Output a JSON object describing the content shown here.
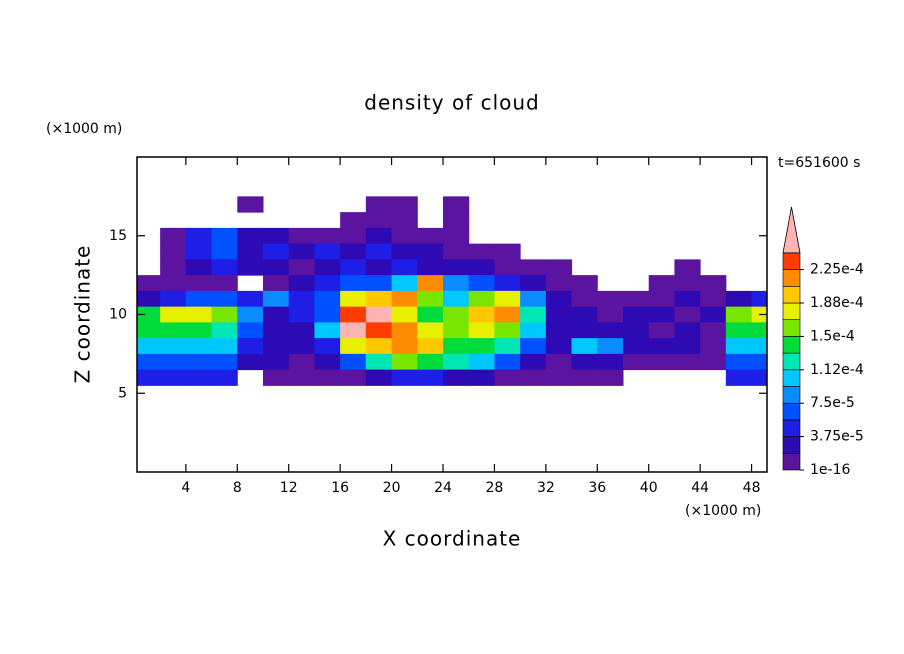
{
  "chart_data": {
    "type": "contour",
    "title": "density of cloud",
    "x_label": "X coordinate",
    "y_label": "Z coordinate",
    "x_unit": "(×1000 m)",
    "y_unit": "(×1000 m)",
    "time_label": "t=651600 s",
    "xlim": [
      0.2,
      49.2
    ],
    "ylim": [
      0,
      20
    ],
    "xticks": [
      4,
      8,
      12,
      16,
      20,
      24,
      28,
      32,
      36,
      40,
      44,
      48
    ],
    "yticks": [
      5,
      10,
      15
    ],
    "x": [
      1,
      3,
      5,
      7,
      9,
      11,
      13,
      15,
      17,
      19,
      21,
      23,
      25,
      27,
      29,
      31,
      33,
      35,
      37,
      39,
      41,
      43,
      45,
      47,
      49
    ],
    "z": [
      17,
      16,
      15,
      14,
      13,
      12,
      11,
      10,
      9,
      8,
      7,
      6
    ],
    "values": [
      [
        null,
        null,
        null,
        null,
        9e-06,
        null,
        null,
        null,
        null,
        9e-06,
        9e-06,
        null,
        9e-06,
        null,
        null,
        null,
        null,
        null,
        null,
        null,
        null,
        null,
        null,
        null,
        null
      ],
      [
        null,
        null,
        null,
        null,
        null,
        null,
        null,
        null,
        9e-06,
        9e-06,
        9e-06,
        null,
        9e-06,
        null,
        null,
        null,
        null,
        null,
        null,
        null,
        null,
        null,
        null,
        null,
        null
      ],
      [
        null,
        9e-06,
        4.7e-05,
        6.6e-05,
        2.8e-05,
        2.8e-05,
        9e-06,
        9e-06,
        9e-06,
        2.8e-05,
        9e-06,
        9e-06,
        9e-06,
        null,
        null,
        null,
        null,
        null,
        null,
        null,
        null,
        null,
        null,
        null,
        null
      ],
      [
        null,
        9e-06,
        4.7e-05,
        6.6e-05,
        2.8e-05,
        4.7e-05,
        2.8e-05,
        4.7e-05,
        2.8e-05,
        4.7e-05,
        2.8e-05,
        2.8e-05,
        9e-06,
        9e-06,
        9e-06,
        null,
        null,
        null,
        null,
        null,
        null,
        null,
        null,
        null,
        null
      ],
      [
        null,
        9e-06,
        2.8e-05,
        4.7e-05,
        2.8e-05,
        2.8e-05,
        9e-06,
        2.8e-05,
        4.7e-05,
        2.8e-05,
        4.7e-05,
        2.8e-05,
        2.8e-05,
        2.8e-05,
        9e-06,
        9e-06,
        9e-06,
        null,
        null,
        null,
        null,
        9e-06,
        null,
        null,
        null
      ],
      [
        9e-06,
        9e-06,
        9e-06,
        9e-06,
        null,
        9e-06,
        2.8e-05,
        4.7e-05,
        6.6e-05,
        6.6e-05,
        0.000103,
        0.000216,
        8.4e-05,
        6.6e-05,
        4.7e-05,
        2.8e-05,
        9e-06,
        9e-06,
        null,
        null,
        9e-06,
        9e-06,
        9e-06,
        null,
        null
      ],
      [
        2.8e-05,
        4.7e-05,
        6.6e-05,
        6.6e-05,
        4.7e-05,
        8.4e-05,
        4.7e-05,
        6.6e-05,
        0.000178,
        0.000197,
        0.000216,
        0.000159,
        0.000103,
        0.000159,
        0.000178,
        8.4e-05,
        2.8e-05,
        9e-06,
        9e-06,
        9e-06,
        9e-06,
        2.8e-05,
        9e-06,
        2.8e-05,
        4.7e-05
      ],
      [
        0.000141,
        0.000178,
        0.000178,
        0.000159,
        8.4e-05,
        2.8e-05,
        4.7e-05,
        6.6e-05,
        0.000234,
        0.00026,
        0.000178,
        0.000141,
        0.000159,
        0.000197,
        0.000216,
        0.000122,
        2.8e-05,
        2.8e-05,
        9e-06,
        2.8e-05,
        2.8e-05,
        9e-06,
        2.8e-05,
        0.000159,
        0.000178
      ],
      [
        0.000141,
        0.000141,
        0.000141,
        0.000122,
        6.6e-05,
        2.8e-05,
        2.8e-05,
        0.000103,
        0.00026,
        0.000234,
        0.000216,
        0.000178,
        0.000159,
        0.000178,
        0.000159,
        0.000103,
        2.8e-05,
        2.8e-05,
        2.8e-05,
        2.8e-05,
        9e-06,
        2.8e-05,
        9e-06,
        0.000141,
        0.000141
      ],
      [
        0.000103,
        0.000103,
        0.000103,
        0.000103,
        4.7e-05,
        2.8e-05,
        2.8e-05,
        4.7e-05,
        0.000178,
        0.000197,
        0.000216,
        0.000197,
        0.000141,
        0.000141,
        0.000122,
        6.6e-05,
        2.8e-05,
        0.000103,
        8.4e-05,
        2.8e-05,
        2.8e-05,
        2.8e-05,
        9e-06,
        0.000103,
        0.000103
      ],
      [
        6.6e-05,
        6.6e-05,
        6.6e-05,
        6.6e-05,
        2.8e-05,
        2.8e-05,
        9e-06,
        2.8e-05,
        6.6e-05,
        0.000122,
        0.000159,
        0.000141,
        0.000122,
        0.000103,
        6.6e-05,
        2.8e-05,
        9e-06,
        2.8e-05,
        2.8e-05,
        9e-06,
        9e-06,
        9e-06,
        9e-06,
        6.6e-05,
        6.6e-05
      ],
      [
        4.7e-05,
        4.7e-05,
        4.7e-05,
        4.7e-05,
        null,
        9e-06,
        9e-06,
        9e-06,
        9e-06,
        2.8e-05,
        4.7e-05,
        4.7e-05,
        2.8e-05,
        2.8e-05,
        9e-06,
        9e-06,
        9e-06,
        9e-06,
        9e-06,
        null,
        null,
        null,
        null,
        4.7e-05,
        4.7e-05
      ]
    ],
    "levels": [
      1e-16,
      1.875e-05,
      3.75e-05,
      5.625e-05,
      7.5e-05,
      9.375e-05,
      0.0001125,
      0.00013125,
      0.00015,
      0.00016875,
      0.0001875,
      0.00020625,
      0.000225,
      0.00024375
    ],
    "colors": [
      "#5a14a0",
      "#2d0ab4",
      "#1e1ee6",
      "#0050ff",
      "#0a8cff",
      "#00c8ff",
      "#00e6b4",
      "#00dc3c",
      "#78e600",
      "#e6f000",
      "#ffc800",
      "#ff8c00",
      "#ff3c00",
      "#ffb4b4"
    ],
    "cbar_ticks": [
      1e-16,
      {
        "value": 3.75e-05,
        "label": "3.75e-5"
      },
      {
        "value": 7.5e-05,
        "label": "7.5e-5"
      },
      {
        "value": 0.0001125,
        "label": "1.12e-4"
      },
      {
        "value": 0.00015,
        "label": "1.5e-4"
      },
      {
        "value": 0.0001875,
        "label": "1.88e-4"
      },
      {
        "value": 0.000225,
        "label": "2.25e-4"
      }
    ]
  }
}
